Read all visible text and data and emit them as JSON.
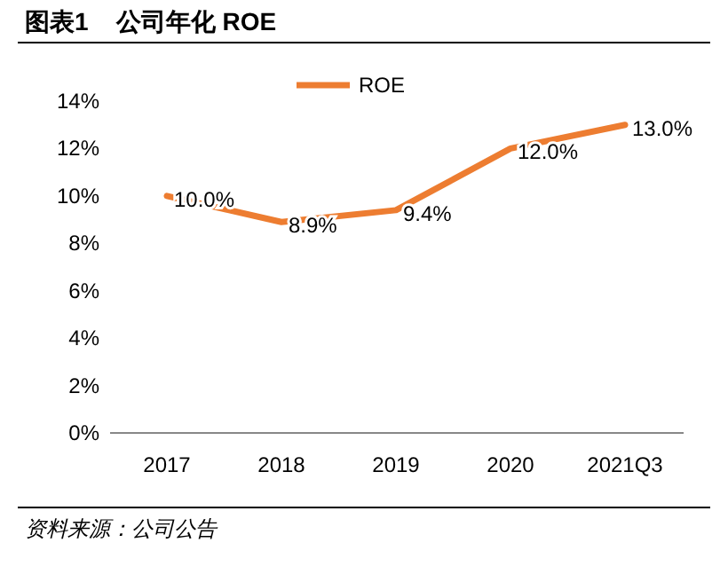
{
  "chart_data": {
    "type": "line",
    "title": "图表1    公司年化 ROE",
    "categories": [
      "2017",
      "2018",
      "2019",
      "2020",
      "2021Q3"
    ],
    "series": [
      {
        "name": "ROE",
        "color": "#ed7d31",
        "values": [
          10.0,
          8.9,
          9.4,
          12.0,
          13.0
        ]
      }
    ],
    "ylim": [
      0,
      14
    ],
    "yticks": [
      {
        "value": 0,
        "label": "0%"
      },
      {
        "value": 2,
        "label": "2%"
      },
      {
        "value": 4,
        "label": "4%"
      },
      {
        "value": 6,
        "label": "6%"
      },
      {
        "value": 8,
        "label": "8%"
      },
      {
        "value": 10,
        "label": "10%"
      },
      {
        "value": 12,
        "label": "12%"
      },
      {
        "value": 14,
        "label": "14%"
      }
    ],
    "value_labels": [
      "10.0%",
      "8.9%",
      "9.4%",
      "12.0%",
      "13.0%"
    ],
    "legend": "top",
    "grid": false,
    "marker": "none",
    "line_style": "solid",
    "annotations": [
      "资料来源：公司公告"
    ]
  }
}
